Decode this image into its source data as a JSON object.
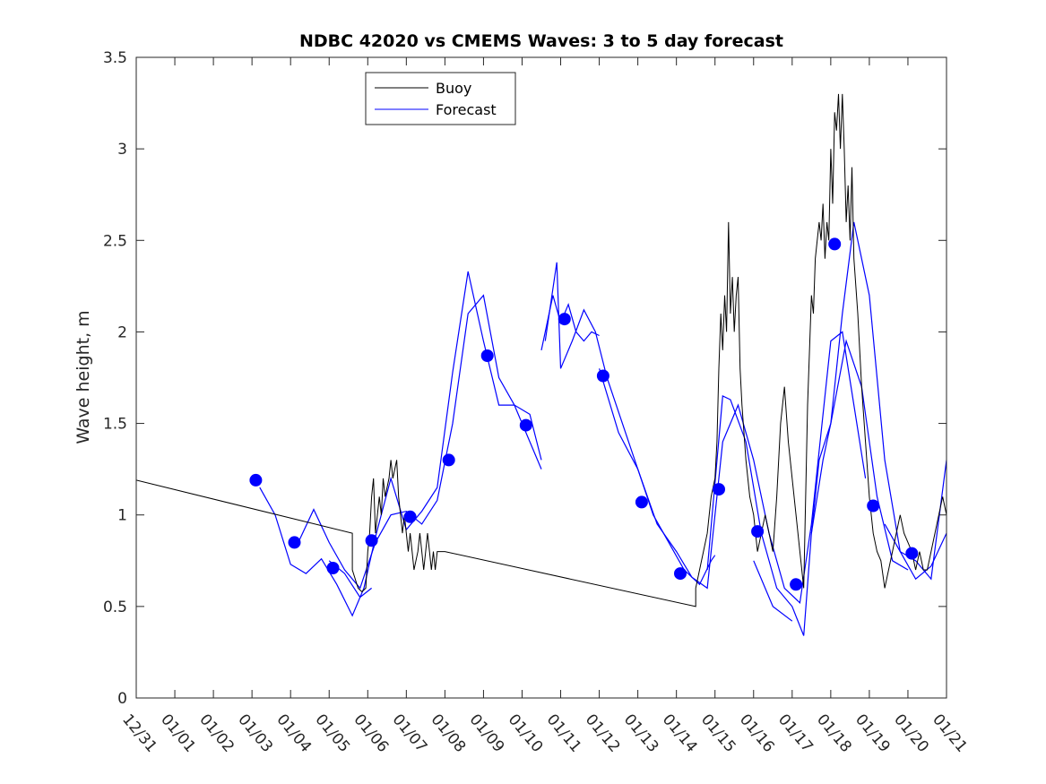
{
  "chart_data": {
    "type": "line",
    "title": "NDBC 42020 vs CMEMS Waves: 3 to 5 day forecast",
    "xlabel": "",
    "ylabel": "Wave height, m",
    "xlim": [
      0,
      21
    ],
    "ylim": [
      0,
      3.5
    ],
    "grid": false,
    "legend_position": "top-center",
    "x_tick_values": [
      0,
      1,
      2,
      3,
      4,
      5,
      6,
      7,
      8,
      9,
      10,
      11,
      12,
      13,
      14,
      15,
      16,
      17,
      18,
      19,
      20,
      21
    ],
    "x_tick_labels": [
      "12/31",
      "01/01",
      "01/02",
      "01/03",
      "01/04",
      "01/05",
      "01/06",
      "01/07",
      "01/08",
      "01/09",
      "01/10",
      "01/11",
      "01/12",
      "01/13",
      "01/14",
      "01/15",
      "01/16",
      "01/17",
      "01/18",
      "01/19",
      "01/20",
      "01/21"
    ],
    "y_tick_values": [
      0,
      0.5,
      1,
      1.5,
      2,
      2.5,
      3,
      3.5
    ],
    "y_tick_labels": [
      "0",
      "0.5",
      "1",
      "1.5",
      "2",
      "2.5",
      "3",
      "3.5"
    ],
    "legend": [
      {
        "name": "Buoy",
        "color": "#000000"
      },
      {
        "name": "Forecast",
        "color": "#0000ff"
      }
    ],
    "buoy": {
      "name": "Buoy",
      "color": "#000000",
      "x": [
        0,
        5.6,
        5.6,
        5.75,
        5.85,
        5.95,
        6.0,
        6.05,
        6.1,
        6.15,
        6.2,
        6.3,
        6.35,
        6.4,
        6.45,
        6.55,
        6.6,
        6.65,
        6.75,
        6.8,
        6.85,
        6.9,
        6.95,
        7.0,
        7.05,
        7.1,
        7.15,
        7.2,
        7.3,
        7.35,
        7.4,
        7.45,
        7.5,
        7.55,
        7.6,
        7.65,
        7.7,
        7.75,
        7.8,
        7.9,
        8.0,
        14.5,
        14.5,
        14.6,
        14.7,
        14.8,
        14.9,
        15.0,
        15.05,
        15.1,
        15.15,
        15.2,
        15.25,
        15.3,
        15.35,
        15.4,
        15.45,
        15.5,
        15.55,
        15.6,
        15.65,
        15.7,
        15.8,
        15.9,
        16.0,
        16.1,
        16.2,
        16.3,
        16.4,
        16.5,
        16.6,
        16.7,
        16.8,
        16.9,
        17.0,
        17.1,
        17.2,
        17.3,
        17.4,
        17.5,
        17.55,
        17.6,
        17.7,
        17.75,
        17.8,
        17.85,
        17.9,
        17.95,
        18.0,
        18.05,
        18.1,
        18.15,
        18.2,
        18.25,
        18.3,
        18.35,
        18.4,
        18.45,
        18.5,
        18.55,
        18.6,
        18.7,
        18.8,
        18.9,
        19.0,
        19.1,
        19.2,
        19.3,
        19.4,
        19.5,
        19.6,
        19.7,
        19.8,
        19.9,
        20.0,
        20.1,
        20.2,
        20.3,
        20.4,
        20.5,
        20.6,
        20.7,
        20.8,
        20.9,
        21.0
      ],
      "y": [
        1.19,
        0.9,
        0.7,
        0.6,
        0.58,
        0.6,
        0.8,
        0.9,
        1.1,
        1.2,
        0.9,
        1.1,
        1.0,
        1.2,
        1.1,
        1.2,
        1.3,
        1.2,
        1.3,
        1.1,
        1.0,
        0.9,
        1.0,
        0.9,
        0.8,
        0.9,
        0.8,
        0.7,
        0.8,
        0.9,
        0.8,
        0.7,
        0.8,
        0.9,
        0.8,
        0.7,
        0.8,
        0.7,
        0.8,
        0.8,
        0.8,
        0.5,
        0.6,
        0.7,
        0.8,
        0.9,
        1.1,
        1.2,
        1.4,
        1.8,
        2.1,
        1.9,
        2.2,
        2.0,
        2.6,
        2.1,
        2.3,
        2.0,
        2.2,
        2.3,
        1.8,
        1.6,
        1.3,
        1.1,
        1.0,
        0.8,
        0.9,
        1.0,
        0.9,
        0.8,
        1.1,
        1.5,
        1.7,
        1.4,
        1.2,
        1.0,
        0.8,
        0.6,
        1.6,
        2.2,
        2.1,
        2.4,
        2.6,
        2.5,
        2.7,
        2.4,
        2.6,
        2.5,
        3.0,
        2.7,
        3.2,
        3.1,
        3.3,
        3.0,
        3.3,
        3.0,
        2.6,
        2.8,
        2.5,
        2.9,
        2.4,
        2.1,
        1.7,
        1.4,
        1.1,
        0.9,
        0.8,
        0.75,
        0.6,
        0.7,
        0.8,
        0.9,
        1.0,
        0.9,
        0.85,
        0.8,
        0.7,
        0.8,
        0.7,
        0.7,
        0.8,
        0.9,
        1.0,
        1.1,
        1.0
      ]
    },
    "forecast_runs": [
      {
        "name": "Forecast",
        "x": [
          3.2,
          3.6,
          4.0,
          4.4,
          4.8,
          5.2,
          5.6,
          5.9,
          6.2,
          6.6,
          7.0,
          7.4,
          7.8,
          8.2,
          8.6,
          9.0,
          9.4,
          9.8,
          10.2,
          10.5
        ],
        "y": [
          1.15,
          1.0,
          0.73,
          0.68,
          0.76,
          0.62,
          0.45,
          0.6,
          0.88,
          1.2,
          0.92,
          1.02,
          1.15,
          1.78,
          2.33,
          1.95,
          1.6,
          1.6,
          1.4,
          1.25
        ]
      },
      {
        "name": "Forecast",
        "x": [
          4.2,
          4.6,
          5.0,
          5.4,
          5.8,
          6.2,
          6.6,
          7.0,
          7.4,
          7.8,
          8.2,
          8.6,
          9.0,
          9.4,
          9.8,
          10.2,
          10.5
        ],
        "y": [
          0.85,
          1.03,
          0.85,
          0.7,
          0.6,
          0.85,
          1.0,
          1.02,
          0.95,
          1.08,
          1.5,
          2.1,
          2.2,
          1.75,
          1.6,
          1.55,
          1.3
        ]
      },
      {
        "name": "Forecast",
        "x": [
          5.0,
          5.4,
          5.8,
          6.1
        ],
        "y": [
          0.75,
          0.68,
          0.55,
          0.6
        ]
      },
      {
        "name": "Forecast",
        "x": [
          10.5,
          10.8,
          11.0,
          11.2,
          11.4,
          11.6,
          11.8,
          12.0
        ],
        "y": [
          1.9,
          2.2,
          2.05,
          2.15,
          2.0,
          1.95,
          2.0,
          1.98
        ]
      },
      {
        "name": "Forecast",
        "x": [
          10.6,
          10.9,
          11.0,
          11.3,
          11.6,
          11.9,
          12.2,
          12.6,
          13.0,
          13.4,
          13.8,
          14.2,
          14.6,
          14.9,
          15.0
        ],
        "y": [
          1.95,
          2.38,
          1.8,
          1.95,
          2.12,
          2.0,
          1.75,
          1.5,
          1.25,
          1.0,
          0.85,
          0.7,
          0.62,
          0.75,
          0.78
        ]
      },
      {
        "name": "Forecast",
        "x": [
          12.0,
          12.5,
          13.0,
          13.5,
          14.0,
          14.4,
          14.8,
          15.2,
          15.6,
          16.0,
          16.4,
          16.8,
          17.2,
          17.5,
          17.7,
          18.0,
          18.3,
          18.6,
          18.9
        ],
        "y": [
          1.8,
          1.45,
          1.25,
          0.95,
          0.8,
          0.66,
          0.6,
          1.4,
          1.6,
          1.3,
          0.9,
          0.6,
          0.52,
          0.95,
          1.35,
          1.95,
          2.0,
          1.6,
          1.2
        ]
      },
      {
        "name": "Forecast",
        "x": [
          14.8,
          15.2,
          15.4,
          15.8,
          16.2,
          16.6,
          17.0,
          17.3,
          17.5,
          17.7,
          18.0,
          18.3,
          18.6,
          19.0,
          19.4,
          19.8,
          20.2,
          20.6,
          21.0
        ],
        "y": [
          0.7,
          1.65,
          1.63,
          1.4,
          0.9,
          0.6,
          0.5,
          0.34,
          0.9,
          1.3,
          1.5,
          2.1,
          2.6,
          2.2,
          1.3,
          0.8,
          0.65,
          0.72,
          0.9
        ]
      },
      {
        "name": "Forecast",
        "x": [
          16.0,
          16.5,
          17.0
        ],
        "y": [
          0.75,
          0.5,
          0.42
        ]
      },
      {
        "name": "Forecast",
        "x": [
          17.5,
          17.8,
          18.0,
          18.4,
          18.8,
          19.2,
          19.6,
          20.0
        ],
        "y": [
          0.9,
          1.3,
          1.5,
          1.95,
          1.7,
          1.1,
          0.75,
          0.7
        ]
      },
      {
        "name": "Forecast",
        "x": [
          19.4,
          19.8,
          20.2,
          20.6,
          21.0
        ],
        "y": [
          0.95,
          0.8,
          0.75,
          0.65,
          1.3
        ]
      }
    ],
    "markers": {
      "name": "Forecast points",
      "color": "#0000ff",
      "x": [
        3.1,
        4.1,
        5.1,
        6.1,
        7.1,
        8.1,
        9.1,
        10.1,
        11.1,
        12.1,
        13.1,
        14.1,
        15.1,
        16.1,
        17.1,
        18.1,
        19.1,
        20.1
      ],
      "y": [
        1.19,
        0.85,
        0.71,
        0.86,
        0.99,
        1.3,
        1.87,
        1.49,
        2.07,
        1.76,
        1.07,
        0.68,
        1.14,
        0.91,
        0.62,
        2.48,
        1.05,
        0.79
      ]
    }
  }
}
